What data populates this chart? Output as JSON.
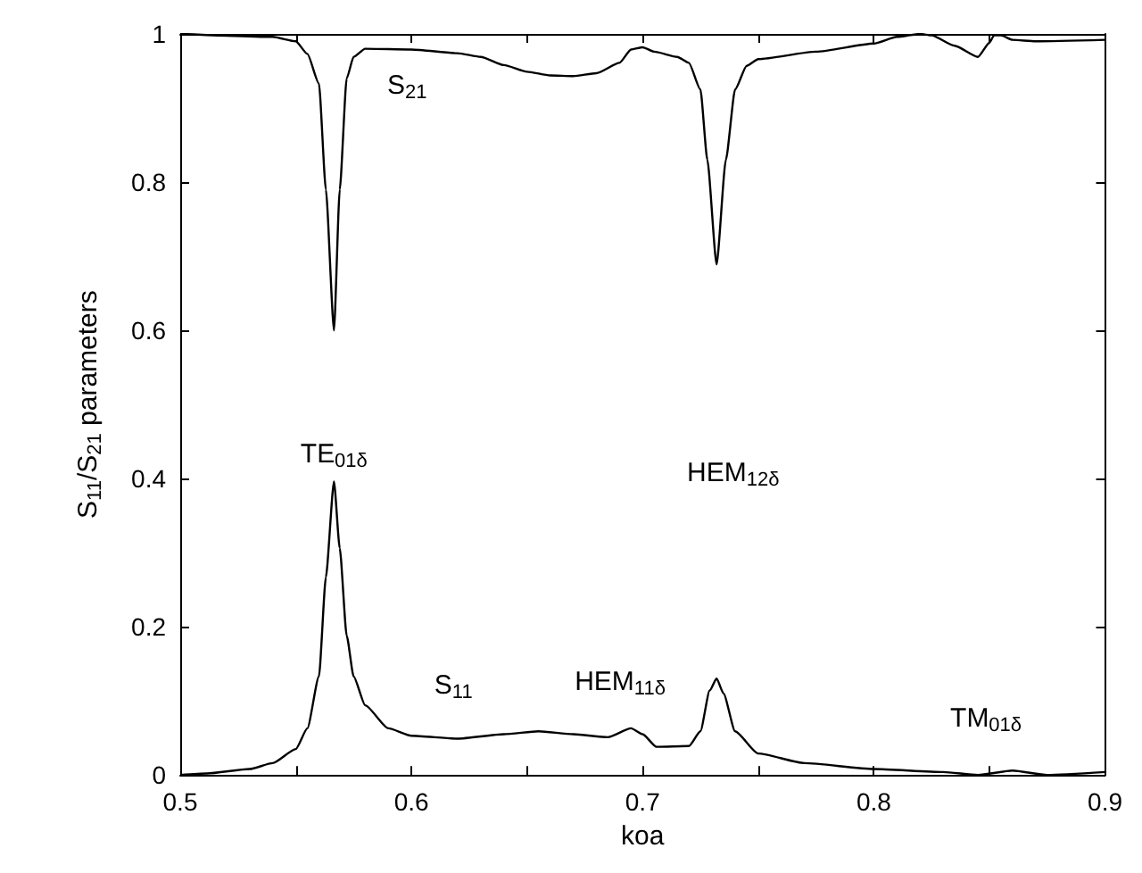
{
  "chart_data": {
    "type": "line",
    "xlabel": "koa",
    "ylabel": "S$_{11}$/S$_{21}$ parameters",
    "xlim": [
      0.5,
      0.9
    ],
    "ylim": [
      0,
      1
    ],
    "xticks": [
      0.5,
      {
        "value": 0.55,
        "label": null
      },
      0.6,
      {
        "value": 0.65,
        "label": null
      },
      0.7,
      {
        "value": 0.75,
        "label": null
      },
      0.8,
      {
        "value": 0.85,
        "label": null
      },
      0.9
    ],
    "yticks": [
      0,
      0.2,
      0.4,
      0.6,
      0.8,
      1
    ],
    "grid": false,
    "marker": "none",
    "line_style": "solid",
    "series": [
      {
        "color": "#000000",
        "x": [
          0.5,
          0.54,
          0.55,
          0.555,
          0.56,
          0.563,
          0.5665,
          0.569,
          0.572,
          0.575,
          0.58,
          0.6,
          0.62,
          0.63,
          0.64,
          0.65,
          0.66,
          0.67,
          0.68,
          0.69,
          0.695,
          0.7,
          0.705,
          0.715,
          0.72,
          0.725,
          0.728,
          0.732,
          0.736,
          0.74,
          0.745,
          0.75,
          0.775,
          0.8,
          0.81,
          0.82,
          0.825,
          0.835,
          0.845,
          0.85,
          0.852,
          0.855,
          0.86,
          0.87,
          0.9
        ],
        "values": [
          1.0,
          0.996,
          0.99,
          0.973,
          0.933,
          0.79,
          0.6,
          0.79,
          0.94,
          0.969,
          0.98,
          0.979,
          0.974,
          0.969,
          0.958,
          0.949,
          0.944,
          0.943,
          0.947,
          0.961,
          0.979,
          0.982,
          0.976,
          0.969,
          0.961,
          0.925,
          0.83,
          0.689,
          0.83,
          0.925,
          0.957,
          0.966,
          0.976,
          0.987,
          0.996,
          1.0,
          0.998,
          0.984,
          0.969,
          0.988,
          0.998,
          0.998,
          0.992,
          0.99,
          0.992
        ]
      },
      {
        "color": "#000000",
        "x": [
          0.5,
          0.5115,
          0.53,
          0.54,
          0.55,
          0.555,
          0.56,
          0.563,
          0.5665,
          0.569,
          0.572,
          0.575,
          0.58,
          0.59,
          0.6,
          0.62,
          0.64,
          0.655,
          0.67,
          0.685,
          0.695,
          0.7,
          0.706,
          0.72,
          0.725,
          0.729,
          0.732,
          0.735,
          0.74,
          0.75,
          0.77,
          0.8,
          0.83,
          0.845,
          0.86,
          0.875,
          0.9
        ],
        "values": [
          0,
          0.002,
          0.008,
          0.016,
          0.035,
          0.063,
          0.133,
          0.267,
          0.396,
          0.306,
          0.188,
          0.133,
          0.094,
          0.063,
          0.053,
          0.049,
          0.055,
          0.059,
          0.055,
          0.051,
          0.063,
          0.055,
          0.038,
          0.039,
          0.059,
          0.114,
          0.13,
          0.11,
          0.059,
          0.029,
          0.016,
          0.008,
          0.004,
          0,
          0.006,
          0,
          0.004
        ]
      }
    ],
    "annotations": [
      "S$_{21}$",
      "TE$_{01δ}$",
      "HEM$_{12δ}$",
      "S$_{11}$",
      "HEM$_{11δ}$",
      "TM$_{01δ}$"
    ]
  }
}
